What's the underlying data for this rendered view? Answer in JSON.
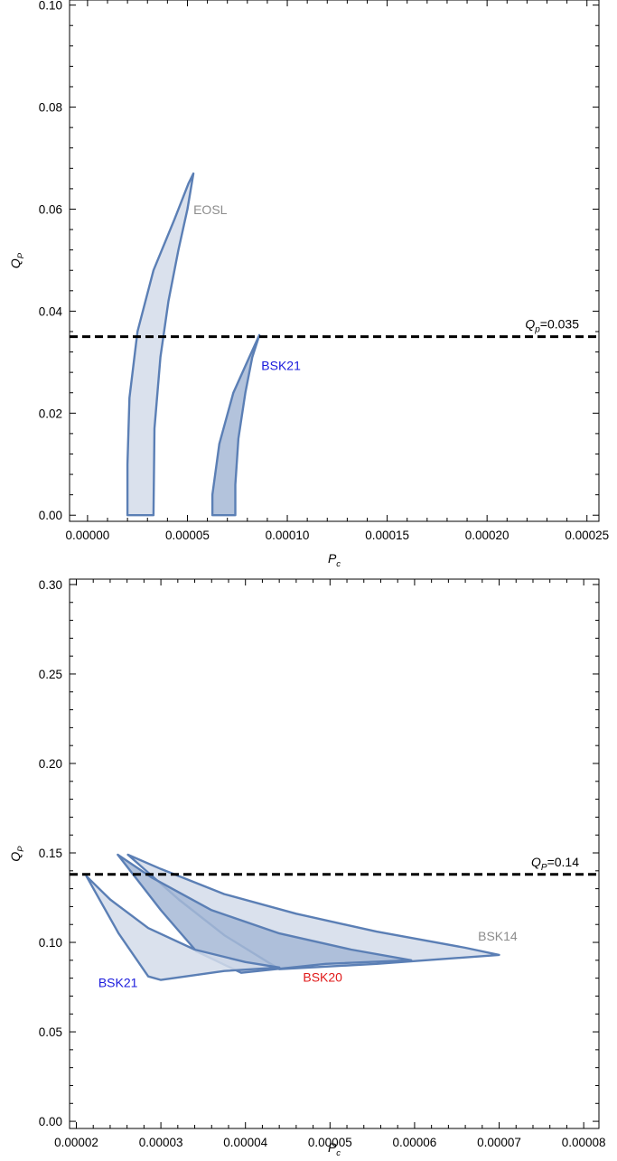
{
  "chart_data": [
    {
      "type": "area",
      "xlabel": "P",
      "xlabel_sub": "c",
      "ylabel": "Q",
      "ylabel_sub": "P",
      "xlim": [
        -9e-06,
        0.000256
      ],
      "ylim": [
        -0.0012,
        0.101
      ],
      "x_ticks": [
        {
          "value": 0.0,
          "label": "0.00000"
        },
        {
          "value": 5e-05,
          "label": "0.00005"
        },
        {
          "value": 0.0001,
          "label": "0.00010"
        },
        {
          "value": 0.00015,
          "label": "0.00015"
        },
        {
          "value": 0.0002,
          "label": "0.00020"
        },
        {
          "value": 0.00025,
          "label": "0.00025"
        }
      ],
      "y_ticks": [
        {
          "value": 0.0,
          "label": "0.00"
        },
        {
          "value": 0.02,
          "label": "0.02"
        },
        {
          "value": 0.04,
          "label": "0.04"
        },
        {
          "value": 0.06,
          "label": "0.06"
        },
        {
          "value": 0.08,
          "label": "0.08"
        },
        {
          "value": 0.1,
          "label": "0.10"
        }
      ],
      "reference_line": {
        "y": 0.035,
        "label_main": "Q",
        "label_sub": "p",
        "label_value": "=0.035",
        "style": "dashed",
        "color": "#000000"
      },
      "series": [
        {
          "name": "EOSL",
          "label_color": "#8c8c8c",
          "fill": "#d3dcea",
          "stroke": "#5b7fb5",
          "label_at": [
            5.3e-05,
            0.059
          ],
          "points": [
            [
              2e-05,
              0.0
            ],
            [
              3.3e-05,
              0.0
            ],
            [
              3.35e-05,
              0.017
            ],
            [
              3.65e-05,
              0.031
            ],
            [
              4.05e-05,
              0.042
            ],
            [
              4.55e-05,
              0.052
            ],
            [
              5e-05,
              0.06
            ],
            [
              5.3e-05,
              0.067
            ],
            [
              5.05e-05,
              0.065
            ],
            [
              4.35e-05,
              0.058
            ],
            [
              3.3e-05,
              0.048
            ],
            [
              2.5e-05,
              0.036
            ],
            [
              2.1e-05,
              0.023
            ],
            [
              2e-05,
              0.01
            ]
          ]
        },
        {
          "name": "BSK21",
          "label_color": "#1a1adc",
          "fill": "#a6b9d6",
          "stroke": "#5b7fb5",
          "label_at": [
            8.7e-05,
            0.0285
          ],
          "points": [
            [
              6.25e-05,
              0.0
            ],
            [
              7.4e-05,
              0.0
            ],
            [
              7.4e-05,
              0.006
            ],
            [
              7.55e-05,
              0.015
            ],
            [
              7.9e-05,
              0.024
            ],
            [
              8.25e-05,
              0.031
            ],
            [
              8.6e-05,
              0.0353
            ],
            [
              8.1e-05,
              0.031
            ],
            [
              7.3e-05,
              0.024
            ],
            [
              6.6e-05,
              0.014
            ],
            [
              6.25e-05,
              0.004
            ]
          ]
        }
      ]
    },
    {
      "type": "area",
      "xlabel": "P",
      "xlabel_sub": "c",
      "ylabel": "Q",
      "ylabel_sub": "P",
      "xlim": [
        1.92e-05,
        8.18e-05
      ],
      "ylim": [
        -0.004,
        0.303
      ],
      "x_ticks": [
        {
          "value": 2e-05,
          "label": "0.00002"
        },
        {
          "value": 3e-05,
          "label": "0.00003"
        },
        {
          "value": 4e-05,
          "label": "0.00004"
        },
        {
          "value": 5e-05,
          "label": "0.00005"
        },
        {
          "value": 6e-05,
          "label": "0.00006"
        },
        {
          "value": 7e-05,
          "label": "0.00007"
        },
        {
          "value": 8e-05,
          "label": "0.00008"
        }
      ],
      "y_ticks": [
        {
          "value": 0.0,
          "label": "0.00"
        },
        {
          "value": 0.05,
          "label": "0.05"
        },
        {
          "value": 0.1,
          "label": "0.10"
        },
        {
          "value": 0.15,
          "label": "0.15"
        },
        {
          "value": 0.2,
          "label": "0.20"
        },
        {
          "value": 0.25,
          "label": "0.25"
        },
        {
          "value": 0.3,
          "label": "0.30"
        }
      ],
      "reference_line": {
        "y": 0.138,
        "label_main": "Q",
        "label_sub": "P",
        "label_value": "=0.14",
        "style": "dashed",
        "color": "#000000"
      },
      "series": [
        {
          "name": "BSK14",
          "label_color": "#8c8c8c",
          "fill": "#d3dcea",
          "stroke": "#5b7fb5",
          "label_at": [
            6.75e-05,
            0.101
          ],
          "points": [
            [
              2.61e-05,
              0.149
            ],
            [
              3e-05,
              0.141
            ],
            [
              3.75e-05,
              0.127
            ],
            [
              4.6e-05,
              0.116
            ],
            [
              5.55e-05,
              0.106
            ],
            [
              6.6e-05,
              0.097
            ],
            [
              7e-05,
              0.093
            ],
            [
              5.55e-05,
              0.088
            ],
            [
              4.4e-05,
              0.085
            ],
            [
              3.75e-05,
              0.104
            ],
            [
              3.21e-05,
              0.124
            ]
          ]
        },
        {
          "name": "BSK20",
          "label_color": "#e01a1a",
          "fill": "#a6b9d6",
          "stroke": "#5b7fb5",
          "label_at": [
            4.68e-05,
            0.078
          ],
          "points": [
            [
              2.49e-05,
              0.149
            ],
            [
              2.9e-05,
              0.136
            ],
            [
              3.6e-05,
              0.118
            ],
            [
              4.4e-05,
              0.105
            ],
            [
              5.25e-05,
              0.096
            ],
            [
              5.96e-05,
              0.09
            ],
            [
              4.95e-05,
              0.088
            ],
            [
              3.95e-05,
              0.083
            ],
            [
              3.42e-05,
              0.095
            ],
            [
              3e-05,
              0.118
            ]
          ]
        },
        {
          "name": "BSK21",
          "label_color": "#1a1adc",
          "fill": "#d3dcea",
          "stroke": "#5b7fb5",
          "label_at": [
            2.26e-05,
            0.075
          ],
          "points": [
            [
              2.12e-05,
              0.137
            ],
            [
              2.4e-05,
              0.124
            ],
            [
              2.85e-05,
              0.108
            ],
            [
              3.4e-05,
              0.096
            ],
            [
              4e-05,
              0.089
            ],
            [
              4.4e-05,
              0.086
            ],
            [
              3.75e-05,
              0.084
            ],
            [
              3e-05,
              0.079
            ],
            [
              2.85e-05,
              0.081
            ],
            [
              2.5e-05,
              0.105
            ]
          ]
        }
      ]
    }
  ]
}
